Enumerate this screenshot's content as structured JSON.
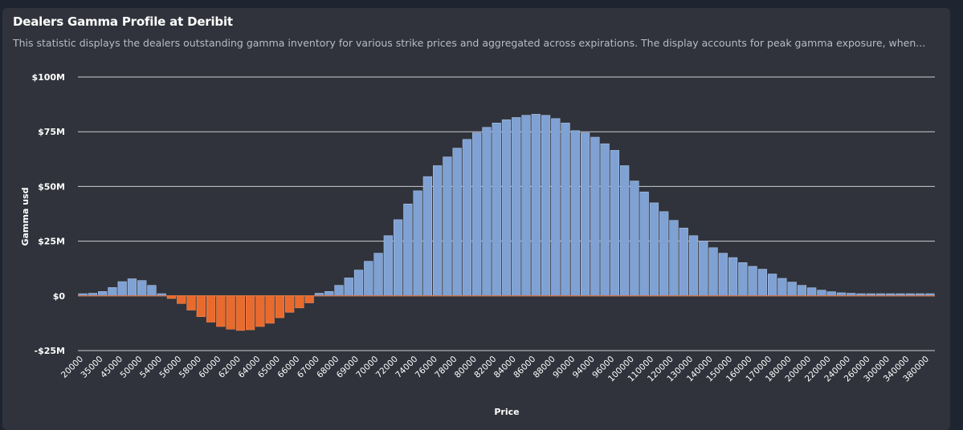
{
  "header": {
    "title": "Dealers Gamma Profile at Deribit",
    "subtitle": "This statistic displays the dealers outstanding gamma inventory for various strike prices and aggregated across expirations. The display accounts for peak gamma exposure, when..."
  },
  "colors": {
    "background": "#1e2530",
    "card": "#30333b",
    "positive": "#7fa1d3",
    "negative": "#e96a2d",
    "grid": "#e6e8ec"
  },
  "chart_data": {
    "type": "bar",
    "title": "Dealers Gamma Profile at Deribit",
    "xlabel": "Price",
    "ylabel": "Gamma usd",
    "ylim": [
      -25000000,
      100000000
    ],
    "yticks": [
      100000000,
      75000000,
      50000000,
      25000000,
      0,
      -25000000
    ],
    "ytick_labels": [
      "$100M",
      "$75M",
      "$50M",
      "$25M",
      "$0",
      "-$25M"
    ],
    "grid": true,
    "x_tick_labels": [
      "20000",
      "35000",
      "45000",
      "50000",
      "54000",
      "56000",
      "58000",
      "60000",
      "62000",
      "64000",
      "65000",
      "66000",
      "67000",
      "68000",
      "69000",
      "70000",
      "72000",
      "74000",
      "76000",
      "78000",
      "80000",
      "82000",
      "84000",
      "86000",
      "88000",
      "90000",
      "94000",
      "96000",
      "100000",
      "110000",
      "120000",
      "130000",
      "140000",
      "150000",
      "160000",
      "170000",
      "180000",
      "200000",
      "220000",
      "240000",
      "260000",
      "300000",
      "340000",
      "380000"
    ],
    "values": [
      1.0,
      1.2,
      2.0,
      3.8,
      6.5,
      7.8,
      7.0,
      4.8,
      1.0,
      -1.2,
      -3.5,
      -6.5,
      -9.5,
      -12.0,
      -14.0,
      -15.2,
      -15.8,
      -15.5,
      -14.0,
      -12.5,
      -10.0,
      -7.5,
      -5.5,
      -3.2,
      1.2,
      2.0,
      4.8,
      8.2,
      11.8,
      15.8,
      19.5,
      27.5,
      34.8,
      42.0,
      48.0,
      54.5,
      59.5,
      63.5,
      67.5,
      71.5,
      74.5,
      77.0,
      79.0,
      80.5,
      81.5,
      82.5,
      83.0,
      82.5,
      81.0,
      79.0,
      75.5,
      74.5,
      72.5,
      69.5,
      66.5,
      59.5,
      52.5,
      47.5,
      42.5,
      38.5,
      34.5,
      31.0,
      27.5,
      25.0,
      22.0,
      19.5,
      17.5,
      15.2,
      13.5,
      12.2,
      10.0,
      8.0,
      6.3,
      4.8,
      3.7,
      2.6,
      1.9,
      1.4,
      1.2,
      1.0,
      1.0,
      1.0,
      1.0,
      1.0,
      1.0,
      1.0,
      1.0
    ]
  }
}
